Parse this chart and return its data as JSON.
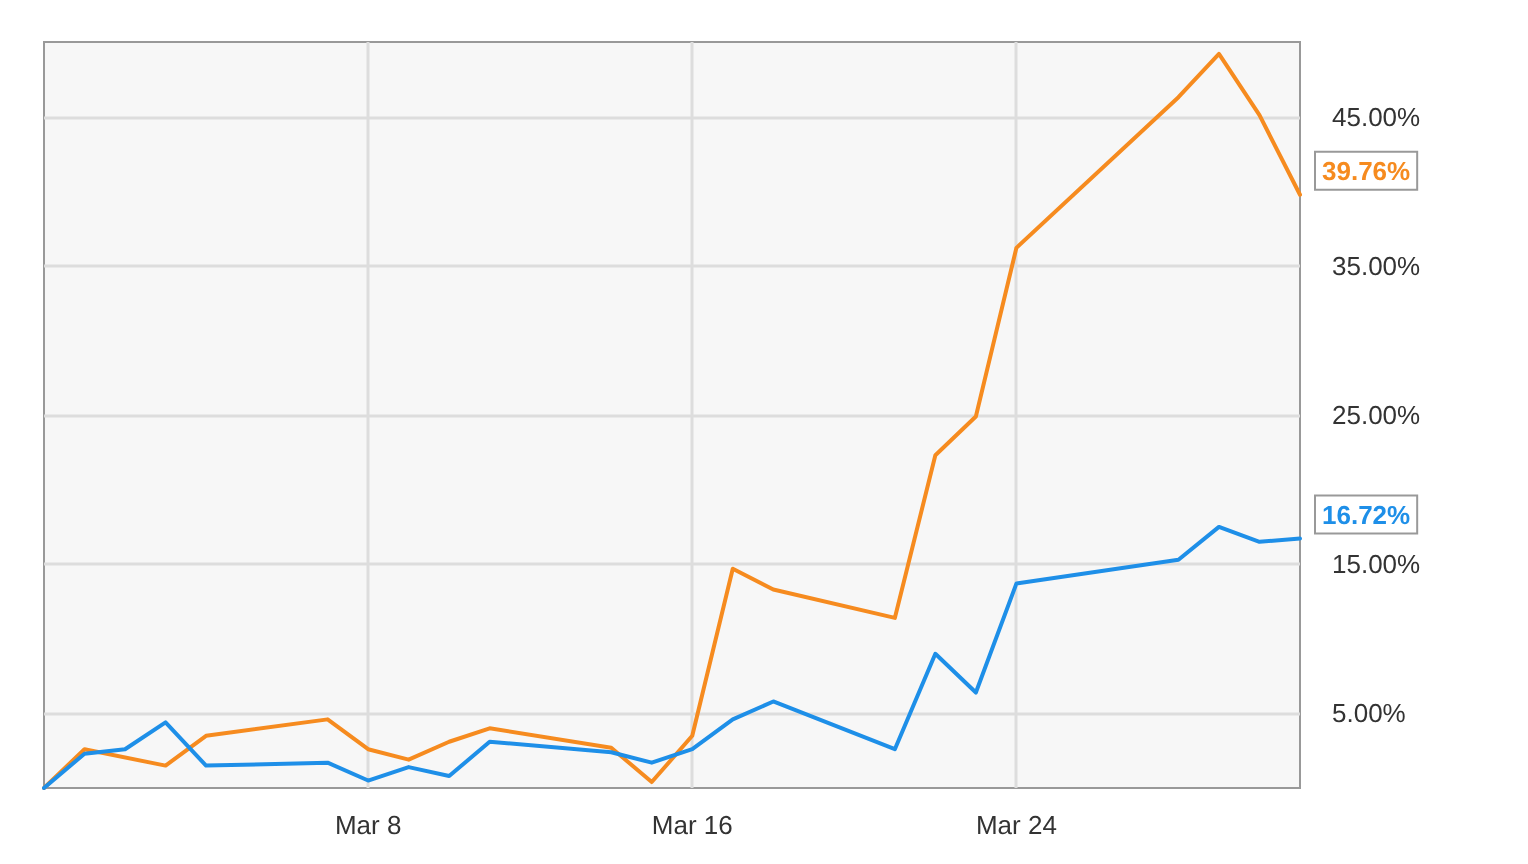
{
  "chart_data": {
    "type": "line",
    "xlim": [
      "--02-29",
      "--03-31"
    ],
    "xticks": [
      {
        "value": "--03-08",
        "label": "Mar 8"
      },
      {
        "value": "--03-16",
        "label": "Mar 16"
      },
      {
        "value": "--03-24",
        "label": "Mar 24"
      }
    ],
    "ylim": [
      0,
      50
    ],
    "yticks": [
      {
        "value": 5,
        "label": "5.00%"
      },
      {
        "value": 15,
        "label": "15.00%"
      },
      {
        "value": 25,
        "label": "25.00%"
      },
      {
        "value": 35,
        "label": "35.00%"
      },
      {
        "value": 45,
        "label": "45.00%"
      }
    ],
    "grid": true,
    "marker": "none",
    "line_style": "solid",
    "series": [
      {
        "color": "#f68b1f",
        "x": [
          "--02-29",
          "--03-01",
          "--03-03",
          "--03-04",
          "--03-07",
          "--03-08",
          "--03-09",
          "--03-10",
          "--03-11",
          "--03-14",
          "--03-15",
          "--03-16",
          "--03-17",
          "--03-18",
          "--03-21",
          "--03-22",
          "--03-23",
          "--03-24",
          "--03-28",
          "--03-29",
          "--03-30",
          "--03-31"
        ],
        "values": [
          0,
          2.6,
          1.5,
          3.5,
          4.6,
          2.6,
          1.9,
          3.1,
          4.0,
          2.7,
          0.4,
          3.5,
          14.7,
          13.3,
          11.4,
          22.3,
          24.9,
          36.2,
          46.3,
          49.2,
          45.1,
          39.76
        ],
        "value_labels": [
          null,
          null,
          null,
          null,
          null,
          null,
          null,
          null,
          null,
          null,
          null,
          null,
          null,
          null,
          null,
          null,
          null,
          null,
          null,
          null,
          null,
          "39.76%"
        ]
      },
      {
        "color": "#1e8fe8",
        "x": [
          "--02-29",
          "--03-01",
          "--03-02",
          "--03-03",
          "--03-04",
          "--03-07",
          "--03-08",
          "--03-09",
          "--03-10",
          "--03-11",
          "--03-14",
          "--03-15",
          "--03-16",
          "--03-17",
          "--03-18",
          "--03-21",
          "--03-22",
          "--03-23",
          "--03-24",
          "--03-28",
          "--03-29",
          "--03-30",
          "--03-31"
        ],
        "values": [
          0,
          2.3,
          2.6,
          4.4,
          1.5,
          1.7,
          0.5,
          1.4,
          0.8,
          3.1,
          2.4,
          1.7,
          2.6,
          4.6,
          5.8,
          2.6,
          9.0,
          6.4,
          13.7,
          15.3,
          17.5,
          16.5,
          16.72
        ],
        "value_labels": [
          null,
          null,
          null,
          null,
          null,
          null,
          null,
          null,
          null,
          null,
          null,
          null,
          null,
          null,
          null,
          null,
          null,
          null,
          null,
          null,
          null,
          null,
          "16.72%"
        ]
      }
    ]
  }
}
